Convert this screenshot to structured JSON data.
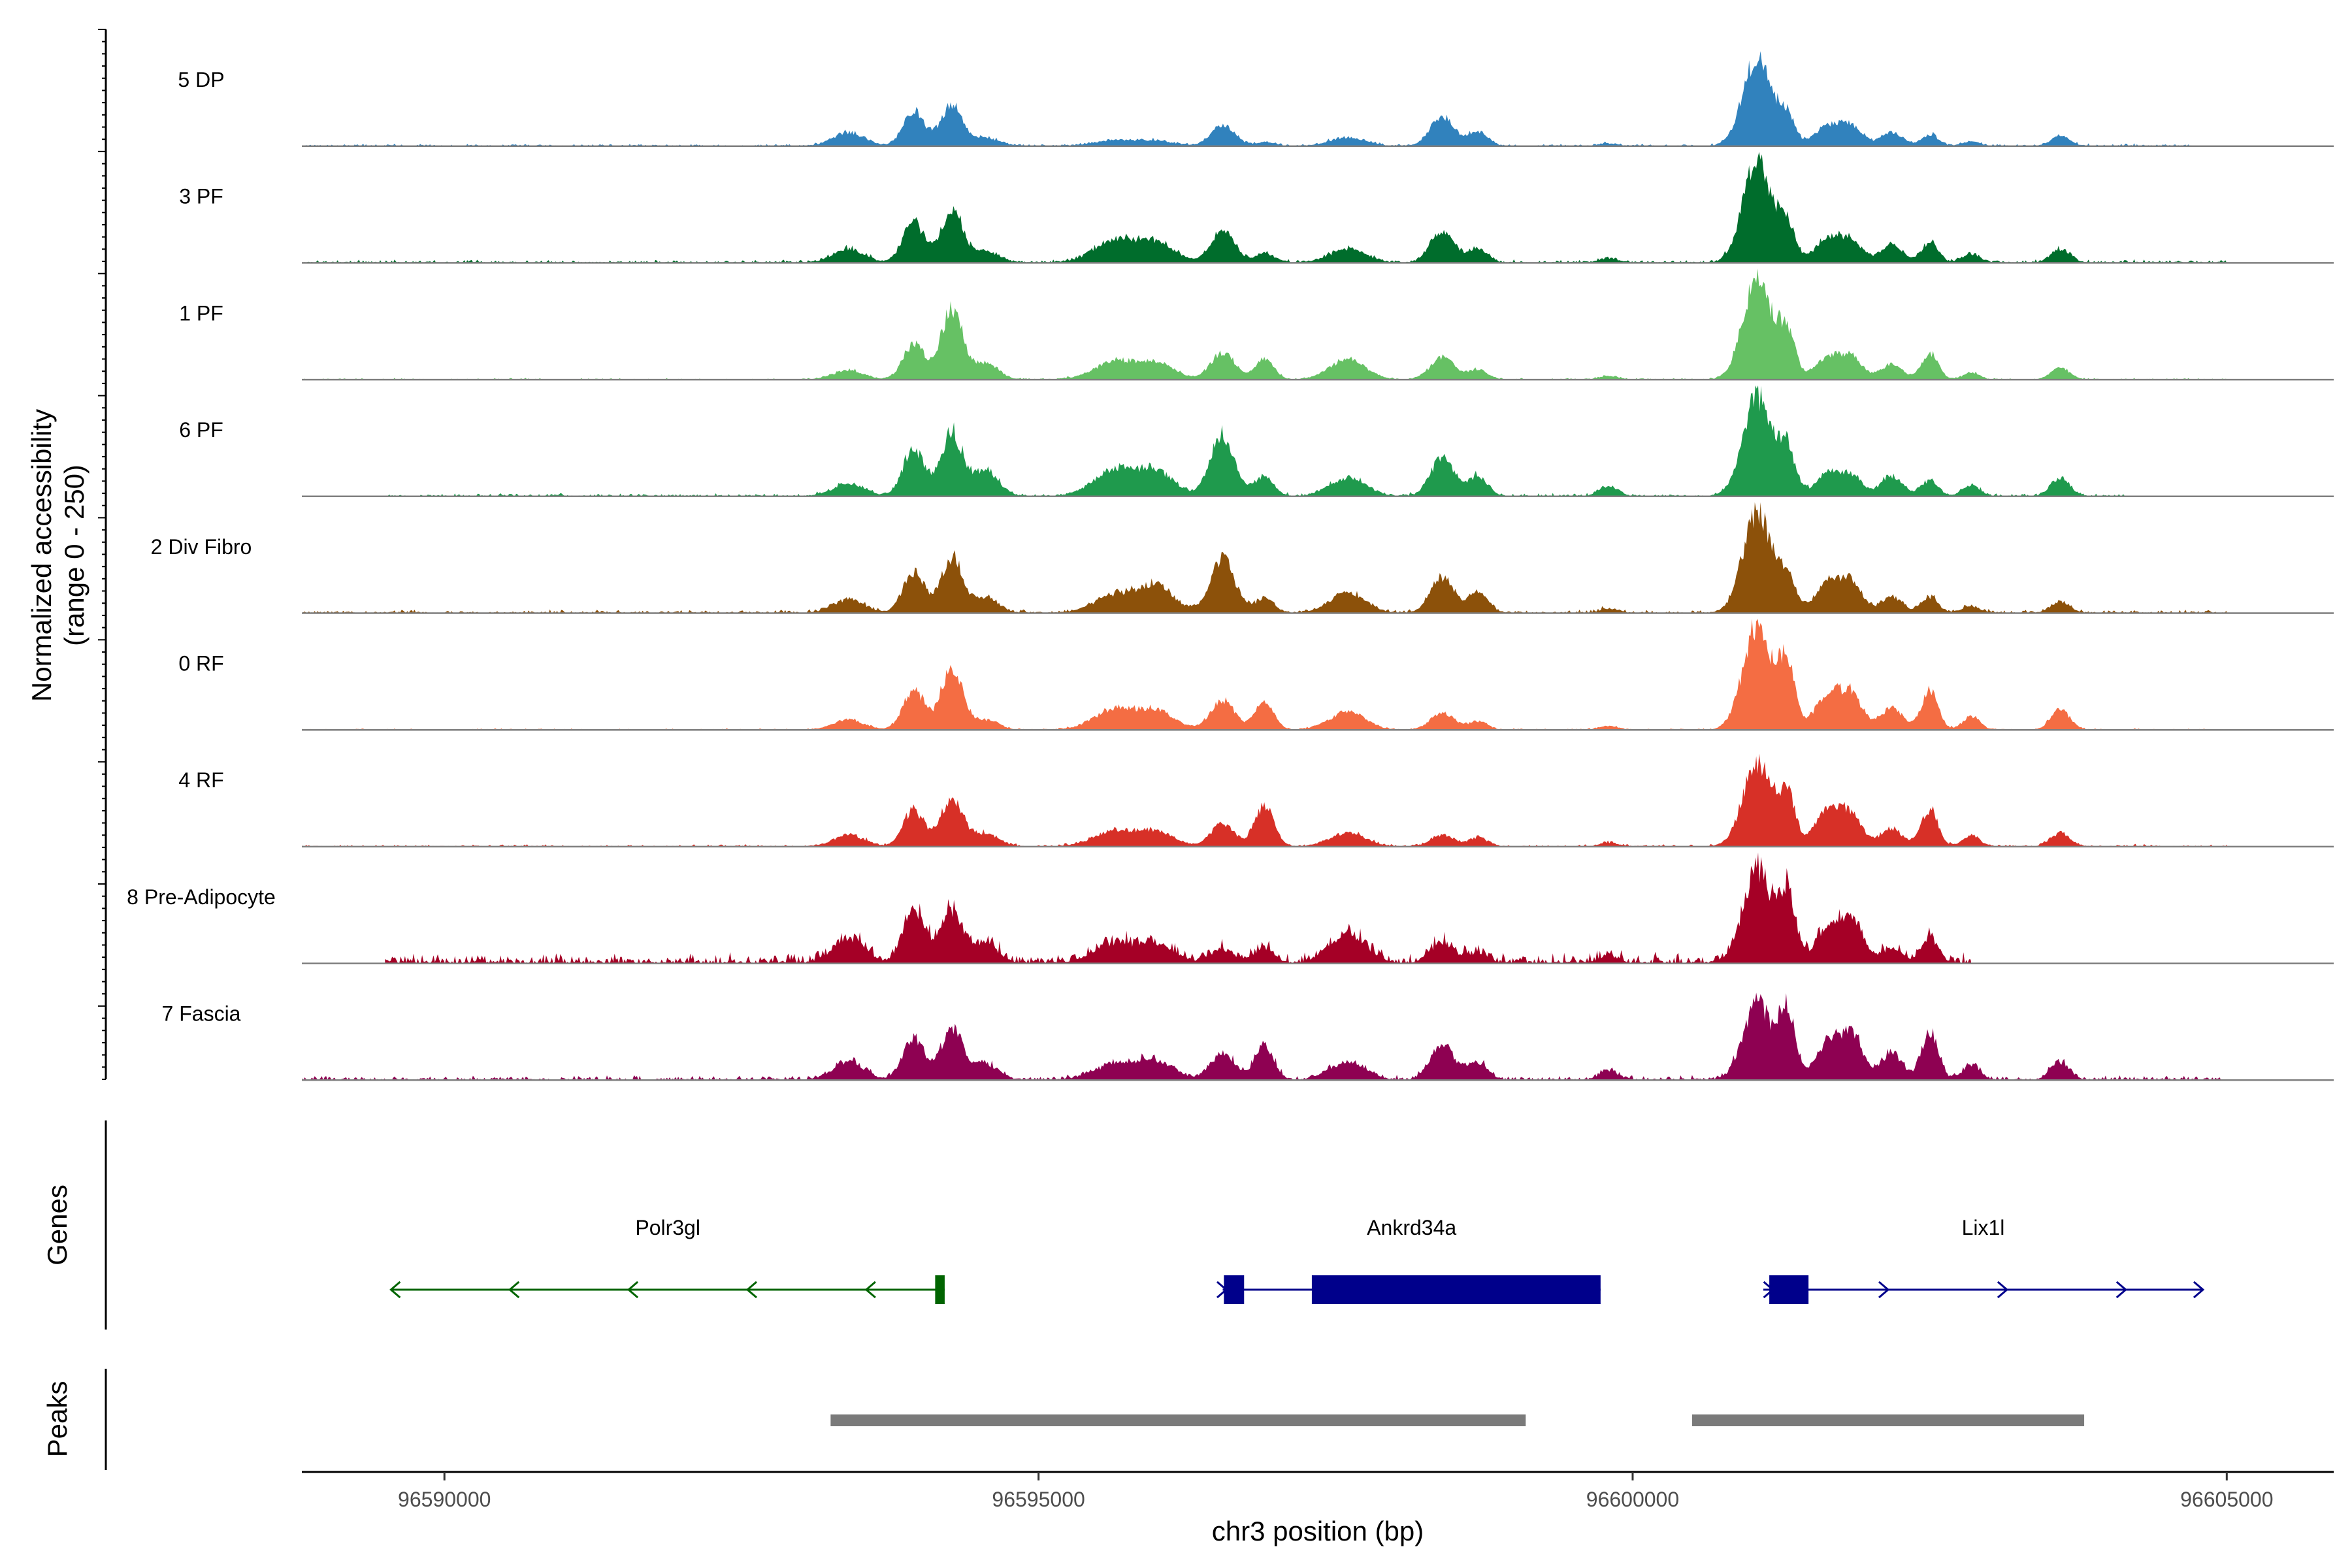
{
  "chart_data": {
    "type": "area",
    "title": "",
    "ylabel_line1": "Normalized accessibility",
    "ylabel_line2": "(range 0 - 250)",
    "ylim": [
      0,
      250
    ],
    "xlabel": "chr3 position (bp)",
    "xlim": [
      96588800,
      96605900
    ],
    "x_ticks": [
      96590000,
      96595000,
      96600000,
      96605000
    ],
    "x_tick_labels": [
      "96590000",
      "96595000",
      "96600000",
      "96605000"
    ],
    "peak_anchors": [
      {
        "name": "P1",
        "x": 96593400,
        "w": 130
      },
      {
        "name": "P2",
        "x": 96593950,
        "w": 90
      },
      {
        "name": "P3",
        "x": 96594270,
        "w": 90
      },
      {
        "name": "P4",
        "x": 96594550,
        "w": 110
      },
      {
        "name": "P5",
        "x": 96595650,
        "w": 180
      },
      {
        "name": "P6",
        "x": 96596000,
        "w": 150
      },
      {
        "name": "P7",
        "x": 96596550,
        "w": 100
      },
      {
        "name": "P8",
        "x": 96596900,
        "w": 80
      },
      {
        "name": "P9",
        "x": 96597600,
        "w": 150
      },
      {
        "name": "P10",
        "x": 96598400,
        "w": 100
      },
      {
        "name": "P11",
        "x": 96598700,
        "w": 80
      },
      {
        "name": "P12",
        "x": 96599800,
        "w": 80
      },
      {
        "name": "P13",
        "x": 96601050,
        "w": 120
      },
      {
        "name": "P14",
        "x": 96601300,
        "w": 70
      },
      {
        "name": "P15",
        "x": 96601650,
        "w": 110
      },
      {
        "name": "P16",
        "x": 96601850,
        "w": 90
      },
      {
        "name": "P17",
        "x": 96602180,
        "w": 90
      },
      {
        "name": "P18",
        "x": 96602500,
        "w": 70
      },
      {
        "name": "P19",
        "x": 96602850,
        "w": 70
      },
      {
        "name": "P20",
        "x": 96603600,
        "w": 80
      }
    ],
    "series": [
      {
        "name": "5 DP",
        "color": "#3182BD",
        "range": [
          96588800,
          96604700
        ],
        "noise": 3,
        "peaks": [
          30,
          75,
          95,
          18,
          12,
          10,
          45,
          8,
          18,
          65,
          32,
          6,
          200,
          60,
          45,
          40,
          30,
          25,
          10,
          22
        ]
      },
      {
        "name": "3 PF",
        "color": "#006D2C",
        "range": [
          96588800,
          96605000
        ],
        "noise": 4,
        "peaks": [
          30,
          90,
          120,
          25,
          50,
          42,
          70,
          20,
          30,
          70,
          30,
          10,
          230,
          80,
          55,
          45,
          40,
          45,
          20,
          30
        ]
      },
      {
        "name": "1 PF",
        "color": "#66C164",
        "range": [
          96588800,
          96605000
        ],
        "noise": 2,
        "peaks": [
          20,
          80,
          160,
          35,
          40,
          35,
          60,
          45,
          45,
          50,
          22,
          8,
          230,
          100,
          50,
          45,
          35,
          60,
          15,
          25
        ]
      },
      {
        "name": "6 PF",
        "color": "#1F9A4D",
        "range": [
          96589500,
          96604200
        ],
        "noise": 4,
        "peaks": [
          28,
          105,
          140,
          55,
          60,
          50,
          140,
          45,
          40,
          85,
          45,
          22,
          225,
          100,
          50,
          40,
          45,
          35,
          25,
          40
        ]
      },
      {
        "name": "2 Div Fibro",
        "color": "#8C510A",
        "range": [
          96588800,
          96605000
        ],
        "noise": 4,
        "peaks": [
          30,
          90,
          125,
          32,
          40,
          55,
          125,
          32,
          45,
          80,
          45,
          10,
          230,
          75,
          70,
          60,
          35,
          35,
          15,
          25
        ]
      },
      {
        "name": "0 RF",
        "color": "#F46D43",
        "range": [
          96588800,
          96605000
        ],
        "noise": 2,
        "peaks": [
          22,
          90,
          140,
          22,
          45,
          40,
          65,
          60,
          40,
          38,
          18,
          8,
          235,
          140,
          80,
          70,
          50,
          90,
          30,
          45
        ]
      },
      {
        "name": "4 RF",
        "color": "#D73027",
        "range": [
          96588800,
          96605000
        ],
        "noise": 3,
        "peaks": [
          25,
          80,
          110,
          30,
          35,
          30,
          50,
          90,
          30,
          25,
          20,
          8,
          190,
          110,
          85,
          60,
          40,
          85,
          25,
          30
        ]
      },
      {
        "name": "8 Pre-Adipocyte",
        "color": "#A50026",
        "range": [
          96589500,
          96602850
        ],
        "noise": 14,
        "peaks": [
          55,
          120,
          115,
          40,
          40,
          35,
          30,
          32,
          65,
          45,
          22,
          15,
          210,
          150,
          75,
          90,
          30,
          55,
          0,
          0
        ]
      },
      {
        "name": "7 Fascia",
        "color": "#8E0152",
        "range": [
          96588800,
          96605000
        ],
        "noise": 6,
        "peaks": [
          40,
          95,
          115,
          35,
          35,
          40,
          60,
          75,
          40,
          80,
          40,
          20,
          170,
          150,
          80,
          95,
          60,
          110,
          35,
          40
        ]
      }
    ],
    "genes": [
      {
        "name": "Polr3gl",
        "color": "#006400",
        "strand": "-",
        "start": 96589550,
        "end": 96594210,
        "exons": [
          [
            96594130,
            96594210
          ]
        ],
        "arrows": [
          96589550,
          96590550,
          96591550,
          96592550,
          96593550
        ]
      },
      {
        "name": "Ankrd34a",
        "color": "#00008B",
        "strand": "+",
        "start": 96596550,
        "end": 96599730,
        "exons": [
          [
            96596560,
            96596730
          ],
          [
            96597300,
            96599730
          ]
        ],
        "arrows": [
          96596580
        ]
      },
      {
        "name": "Lix1l",
        "color": "#00008B",
        "strand": "+",
        "start": 96601100,
        "end": 96604800,
        "exons": [
          [
            96601150,
            96601480
          ]
        ],
        "arrows": [
          96601180,
          96602150,
          96603150,
          96604150,
          96604800
        ]
      }
    ],
    "peaks_track": [
      {
        "start": 96593250,
        "end": 96599100
      },
      {
        "start": 96600500,
        "end": 96603800
      }
    ],
    "side_labels": {
      "genes": "Genes",
      "peaks": "Peaks"
    }
  }
}
